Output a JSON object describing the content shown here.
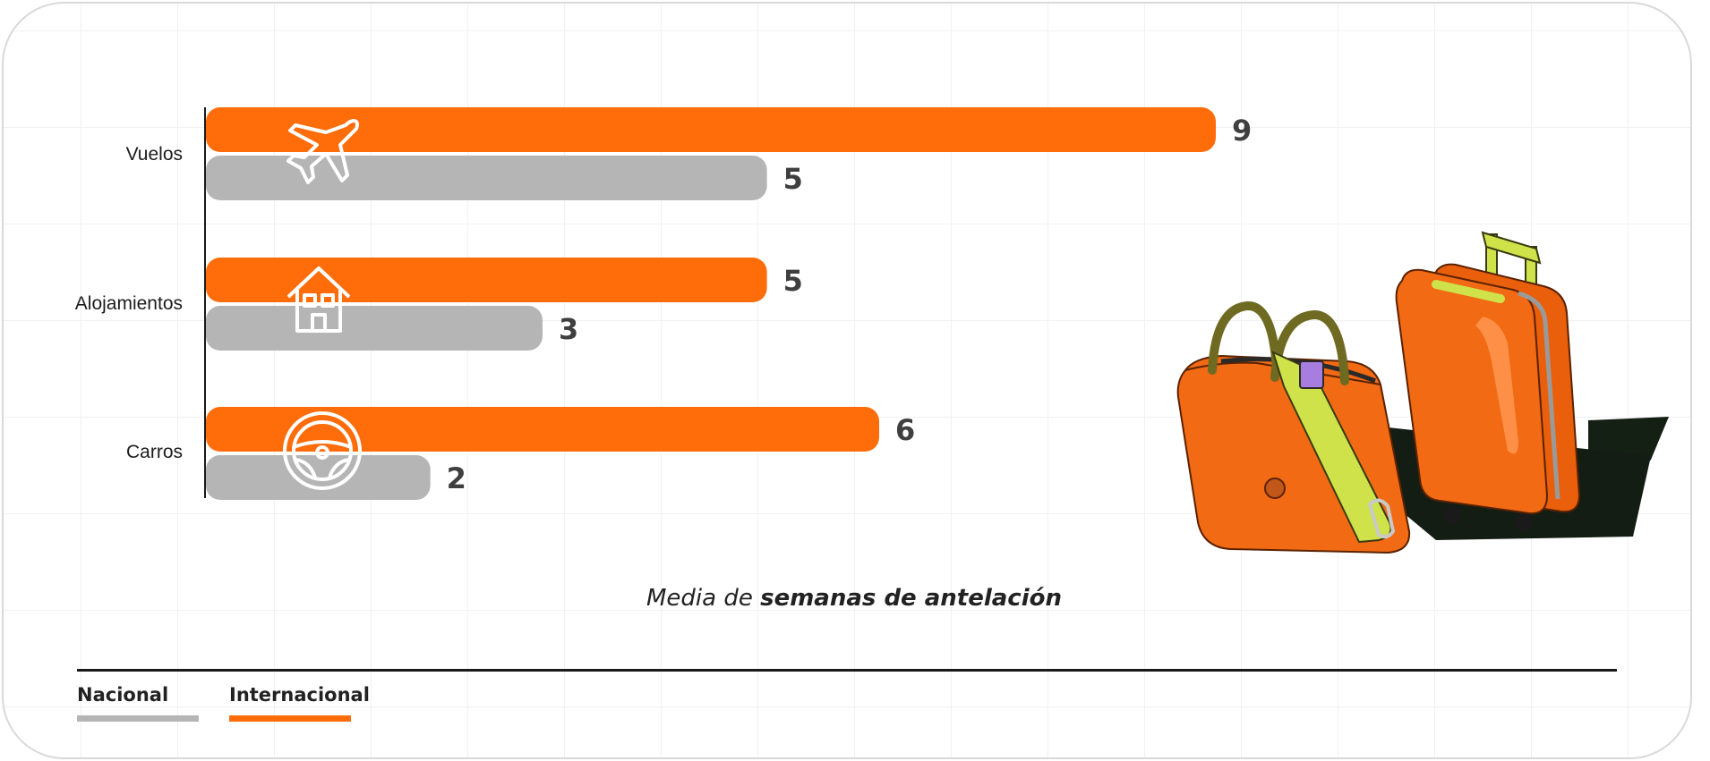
{
  "chart_data": {
    "type": "bar",
    "orientation": "horizontal",
    "categories": [
      "Vuelos",
      "Alojamientos",
      "Carros"
    ],
    "category_icons": [
      "airplane-icon",
      "house-icon",
      "steering-wheel-icon"
    ],
    "series": [
      {
        "name": "Internacional",
        "values": [
          9,
          5,
          6
        ],
        "color": "#ff6c0a"
      },
      {
        "name": "Nacional",
        "values": [
          5,
          3,
          2
        ],
        "color": "#b5b5b5"
      }
    ],
    "xlim": [
      0,
      9.5
    ],
    "title": "",
    "xlabel_prefix": "Media de ",
    "xlabel_bold": "semanas de antelación",
    "ylabel": "",
    "grid": true,
    "legend_position": "bottom-left"
  },
  "legend": {
    "items": [
      {
        "label": "Nacional",
        "color": "#b5b5b5"
      },
      {
        "label": "Internacional",
        "color": "#ff6c0a"
      }
    ]
  },
  "colors": {
    "accent": "#ff6c0a",
    "secondary": "#b5b5b5",
    "text": "#3f3f3f",
    "illustration_bag": "#f26a14",
    "illustration_strap": "#cfe24a",
    "illustration_handle": "#6f6a22"
  },
  "illustration": {
    "icon": "luggage-illustration"
  }
}
